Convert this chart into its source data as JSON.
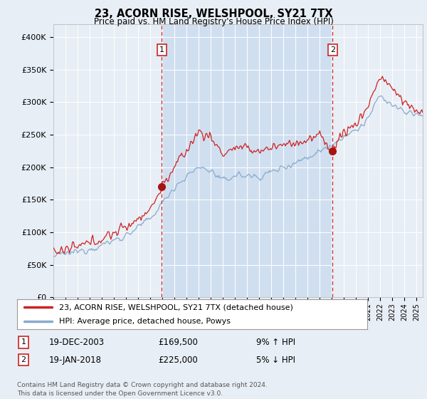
{
  "title": "23, ACORN RISE, WELSHPOOL, SY21 7TX",
  "subtitle": "Price paid vs. HM Land Registry's House Price Index (HPI)",
  "background_color": "#e8eef5",
  "plot_bg_color_light": "#e8eef5",
  "plot_bg_color_shaded": "#d0dff0",
  "ylabel_color": "#333333",
  "ylim": [
    0,
    420000
  ],
  "yticks": [
    0,
    50000,
    100000,
    150000,
    200000,
    250000,
    300000,
    350000,
    400000
  ],
  "ytick_labels": [
    "£0",
    "£50K",
    "£100K",
    "£150K",
    "£200K",
    "£250K",
    "£300K",
    "£350K",
    "£400K"
  ],
  "legend_line1": "23, ACORN RISE, WELSHPOOL, SY21 7TX (detached house)",
  "legend_line2": "HPI: Average price, detached house, Powys",
  "annotation1_date": "19-DEC-2003",
  "annotation1_price": "£169,500",
  "annotation1_hpi": "9% ↑ HPI",
  "annotation2_date": "19-JAN-2018",
  "annotation2_price": "£225,000",
  "annotation2_hpi": "5% ↓ HPI",
  "footer": "Contains HM Land Registry data © Crown copyright and database right 2024.\nThis data is licensed under the Open Government Licence v3.0.",
  "line1_color": "#cc2222",
  "line2_color": "#88aacc",
  "vline_color": "#cc2222",
  "marker_color": "#aa1111",
  "sale1_x": 2003.96,
  "sale1_y": 169500,
  "sale2_x": 2018.05,
  "sale2_y": 225000,
  "xmin": 1995,
  "xmax": 2025.5
}
